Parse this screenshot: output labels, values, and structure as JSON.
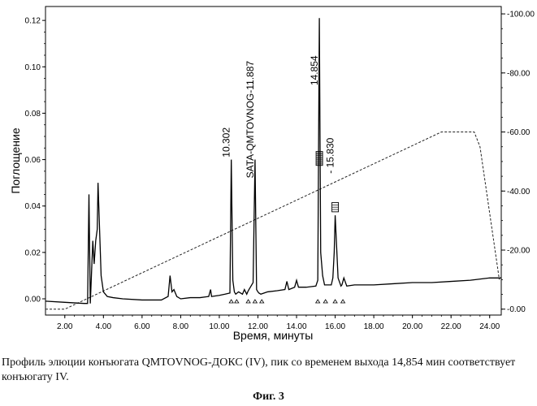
{
  "chart_data": {
    "type": "line",
    "title": "",
    "xlabel": "Время, минуты",
    "ylabel": "Поглощение",
    "xlim": [
      1.0,
      24.6
    ],
    "ylim": [
      -0.007,
      0.126
    ],
    "y2lim": [
      -2.0,
      102.5
    ],
    "x_ticks": [
      "2.00",
      "4.00",
      "6.00",
      "8.00",
      "10.00",
      "12.00",
      "14.00",
      "16.00",
      "18.00",
      "20.00",
      "22.00",
      "24.00"
    ],
    "y_ticks": [
      "0.00",
      "0.02",
      "0.04",
      "0.06",
      "0.08",
      "0.10",
      "0.12"
    ],
    "y2_ticks": [
      "0.00",
      "20.00",
      "40.00",
      "60.00",
      "80.00",
      "100.00"
    ],
    "series": [
      {
        "x": [
          1.0,
          2.0,
          3.0,
          3.18,
          3.25,
          3.32,
          3.45,
          3.52,
          3.6,
          3.68,
          3.72,
          3.8,
          3.88,
          4.0,
          4.2,
          4.5,
          5.0,
          6.0,
          7.0,
          7.35,
          7.45,
          7.55,
          7.65,
          7.8,
          8.0,
          8.5,
          9.0,
          9.45,
          9.55,
          9.6,
          10.0,
          10.3,
          10.55,
          10.62,
          10.7,
          10.78,
          10.85,
          11.0,
          11.2,
          11.3,
          11.42,
          11.5,
          11.75,
          11.85,
          11.93,
          12.0,
          12.05,
          12.15,
          12.5,
          13.0,
          13.4,
          13.5,
          13.6,
          13.9,
          14.0,
          14.1,
          14.5,
          15.0,
          15.1,
          15.18,
          15.25,
          15.35,
          15.45,
          15.8,
          15.88,
          15.95,
          16.0,
          16.15,
          16.3,
          16.35,
          16.45,
          16.6,
          17.0,
          18.0,
          19.0,
          20.0,
          21.0,
          22.0,
          23.0,
          24.0,
          24.6
        ],
        "y": [
          -0.001,
          -0.0015,
          -0.002,
          -0.002,
          0.045,
          -0.002,
          0.025,
          0.015,
          0.025,
          0.03,
          0.05,
          0.03,
          0.01,
          0.003,
          0.001,
          0.0005,
          0.0,
          -0.0005,
          -0.0005,
          0.001,
          0.01,
          0.003,
          0.004,
          0.001,
          0.0,
          0.0005,
          0.0005,
          0.001,
          0.004,
          0.001,
          0.0015,
          0.002,
          0.0025,
          0.06,
          0.008,
          0.003,
          0.002,
          0.003,
          0.002,
          0.004,
          0.002,
          0.0035,
          0.007,
          0.06,
          0.004,
          0.003,
          0.0025,
          0.002,
          0.003,
          0.0035,
          0.004,
          0.0075,
          0.004,
          0.005,
          0.008,
          0.005,
          0.005,
          0.0055,
          0.008,
          0.121,
          0.02,
          0.01,
          0.006,
          0.006,
          0.009,
          0.02,
          0.036,
          0.009,
          0.0055,
          0.006,
          0.009,
          0.0055,
          0.006,
          0.006,
          0.0065,
          0.007,
          0.007,
          0.0075,
          0.008,
          0.009,
          0.009
        ]
      },
      {
        "x": [
          1.0,
          2.0,
          21.5,
          23.2,
          23.5,
          24.5
        ],
        "y2": [
          0.0,
          0.0,
          60.0,
          60.0,
          55.0,
          10.0
        ]
      }
    ],
    "peak_labels": [
      {
        "x": 10.62,
        "text": "10.302"
      },
      {
        "x": 11.85,
        "text": "SATA-QMTOVNOG-11.887"
      },
      {
        "x": 15.18,
        "text": "14.854"
      },
      {
        "x": 16.0,
        "text": "- 15.830"
      }
    ],
    "baseline_markers_x": [
      10.62,
      10.9,
      11.5,
      11.85,
      12.2,
      15.1,
      15.5,
      16.0,
      16.4
    ],
    "fraction_marks": [
      {
        "x": 15.18,
        "y_top": 0.0635,
        "y_bottom": 0.0575,
        "count": 10
      },
      {
        "x": 16.0,
        "y_top": 0.0415,
        "y_bottom": 0.0375,
        "count": 4
      }
    ]
  },
  "caption": "Профиль элюции конъюгата QMTOVNOG-ДОКС (IV), пик со временем выхода 14,854 мин соответствует конъюгату IV.",
  "figure_label": "Фиг. 3"
}
